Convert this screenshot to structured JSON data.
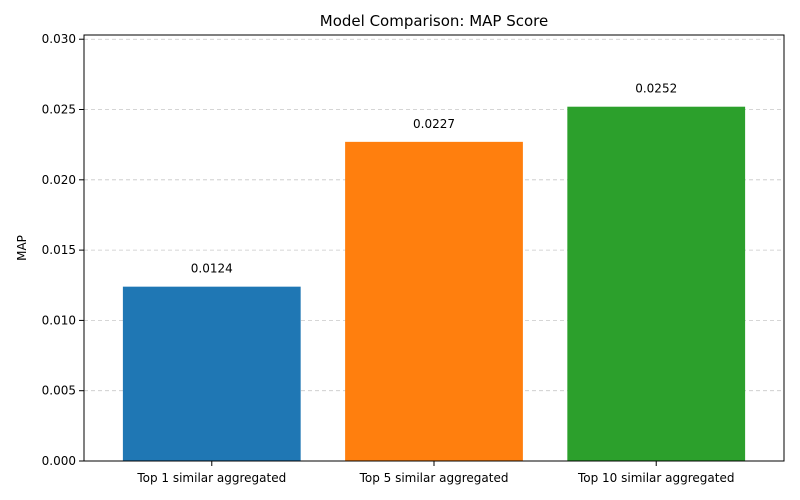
{
  "chart_data": {
    "type": "bar",
    "title": "Model Comparison: MAP Score",
    "xlabel": "",
    "ylabel": "MAP",
    "categories": [
      "Top 1 similar aggregated",
      "Top 5 similar aggregated",
      "Top 10 similar aggregated"
    ],
    "values": [
      0.0124,
      0.0227,
      0.0252
    ],
    "value_labels": [
      "0.0124",
      "0.0227",
      "0.0252"
    ],
    "colors": [
      "#1f77b4",
      "#ff7f0e",
      "#2ca02c"
    ],
    "ylim": [
      0,
      0.0303
    ],
    "yticks": [
      0,
      0.005,
      0.01,
      0.015,
      0.02,
      0.025,
      0.03
    ],
    "ytick_labels": [
      "0.000",
      "0.005",
      "0.010",
      "0.015",
      "0.020",
      "0.025",
      "0.030"
    ],
    "grid": "y-dashed",
    "legend": false
  }
}
